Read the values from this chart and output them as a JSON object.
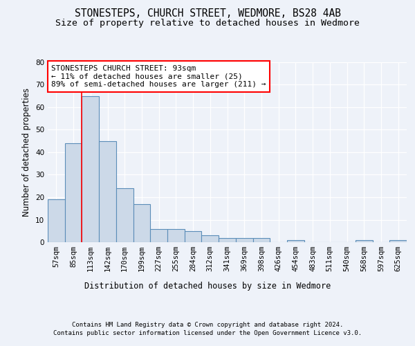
{
  "title1": "STONESTEPS, CHURCH STREET, WEDMORE, BS28 4AB",
  "title2": "Size of property relative to detached houses in Wedmore",
  "xlabel": "Distribution of detached houses by size in Wedmore",
  "ylabel": "Number of detached properties",
  "categories": [
    "57sqm",
    "85sqm",
    "113sqm",
    "142sqm",
    "170sqm",
    "199sqm",
    "227sqm",
    "255sqm",
    "284sqm",
    "312sqm",
    "341sqm",
    "369sqm",
    "398sqm",
    "426sqm",
    "454sqm",
    "483sqm",
    "511sqm",
    "540sqm",
    "568sqm",
    "597sqm",
    "625sqm"
  ],
  "values": [
    19,
    44,
    65,
    45,
    24,
    17,
    6,
    6,
    5,
    3,
    2,
    2,
    2,
    0,
    1,
    0,
    0,
    0,
    1,
    0,
    1
  ],
  "bar_color": "#ccd9e8",
  "bar_edge_color": "#5b8db8",
  "ylim": [
    0,
    80
  ],
  "yticks": [
    0,
    10,
    20,
    30,
    40,
    50,
    60,
    70,
    80
  ],
  "red_line_x": 1.5,
  "annotation_line1": "STONESTEPS CHURCH STREET: 93sqm",
  "annotation_line2": "← 11% of detached houses are smaller (25)",
  "annotation_line3": "89% of semi-detached houses are larger (211) →",
  "footer1": "Contains HM Land Registry data © Crown copyright and database right 2024.",
  "footer2": "Contains public sector information licensed under the Open Government Licence v3.0.",
  "background_color": "#eef2f9",
  "plot_bg_color": "#eef2f9",
  "grid_color": "#ffffff",
  "title1_fontsize": 10.5,
  "title2_fontsize": 9.5,
  "annotation_fontsize": 8,
  "axis_label_fontsize": 8.5,
  "tick_fontsize": 7.5,
  "footer_fontsize": 6.5
}
